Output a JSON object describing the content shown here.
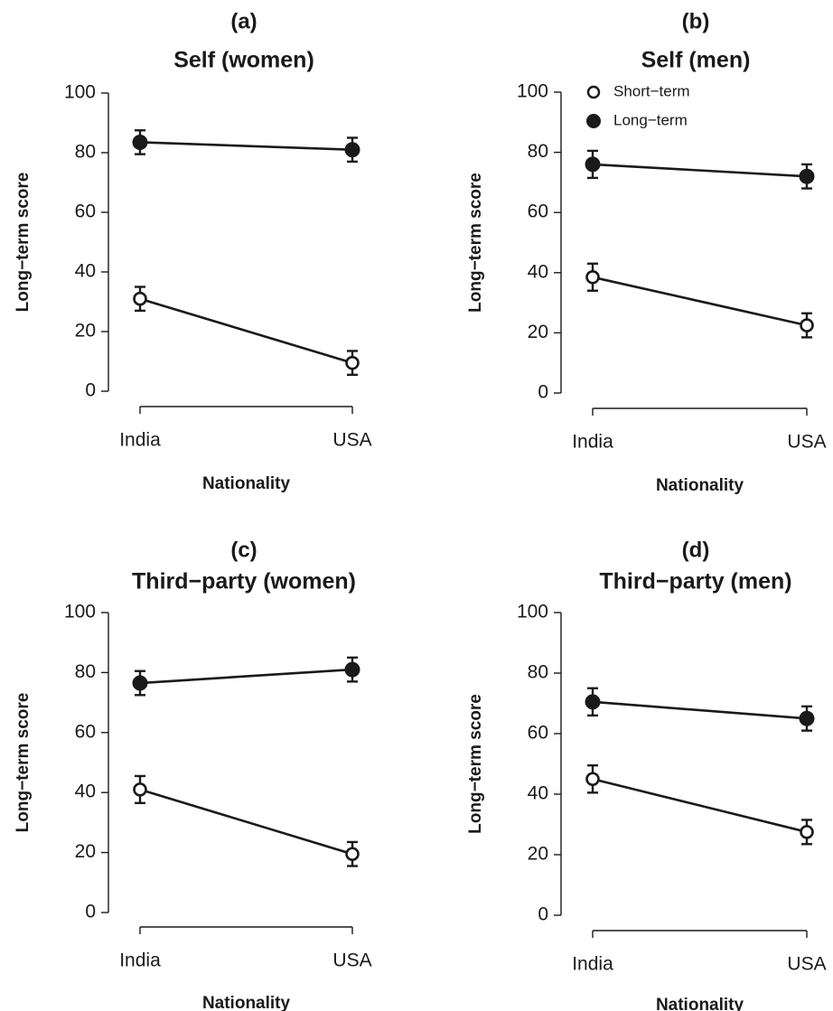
{
  "chart_data": [
    {
      "type": "line",
      "label": "(a)",
      "title": "Self (women)",
      "xlabel": "Nationality",
      "ylabel": "Long−term score",
      "categories": [
        "India",
        "USA"
      ],
      "ylim": [
        0,
        100
      ],
      "yticks": [
        0,
        20,
        40,
        60,
        80,
        100
      ],
      "grid": false,
      "legend": null,
      "series": [
        {
          "key": "short",
          "marker": "open-circle",
          "values": [
            31,
            9.5
          ],
          "errors": [
            4,
            4
          ]
        },
        {
          "key": "long",
          "marker": "filled-circle",
          "values": [
            83.5,
            81
          ],
          "errors": [
            4,
            4
          ]
        }
      ]
    },
    {
      "type": "line",
      "label": "(b)",
      "title": "Self (men)",
      "xlabel": "Nationality",
      "ylabel": "Long−term score",
      "categories": [
        "India",
        "USA"
      ],
      "ylim": [
        0,
        100
      ],
      "yticks": [
        0,
        20,
        40,
        60,
        80,
        100
      ],
      "grid": false,
      "legend": "top-left",
      "series": [
        {
          "key": "short",
          "name": "Short−term",
          "marker": "open-circle",
          "values": [
            38.5,
            22.5
          ],
          "errors": [
            4.5,
            4
          ]
        },
        {
          "key": "long",
          "name": "Long−term",
          "marker": "filled-circle",
          "values": [
            76,
            72
          ],
          "errors": [
            4.5,
            4
          ]
        }
      ]
    },
    {
      "type": "line",
      "label": "(c)",
      "title": "Third−party (women)",
      "xlabel": "Nationality",
      "ylabel": "Long−term score",
      "categories": [
        "India",
        "USA"
      ],
      "ylim": [
        0,
        100
      ],
      "yticks": [
        0,
        20,
        40,
        60,
        80,
        100
      ],
      "grid": false,
      "legend": null,
      "series": [
        {
          "key": "short",
          "marker": "open-circle",
          "values": [
            41,
            19.5
          ],
          "errors": [
            4.5,
            4
          ]
        },
        {
          "key": "long",
          "marker": "filled-circle",
          "values": [
            76.5,
            81
          ],
          "errors": [
            4,
            4
          ]
        }
      ]
    },
    {
      "type": "line",
      "label": "(d)",
      "title": "Third−party (men)",
      "xlabel": "Nationality",
      "ylabel": "Long−term score",
      "categories": [
        "India",
        "USA"
      ],
      "ylim": [
        0,
        100
      ],
      "yticks": [
        0,
        20,
        40,
        60,
        80,
        100
      ],
      "grid": false,
      "legend": null,
      "series": [
        {
          "key": "short",
          "marker": "open-circle",
          "values": [
            45,
            27.5
          ],
          "errors": [
            4.5,
            4
          ]
        },
        {
          "key": "long",
          "marker": "filled-circle",
          "values": [
            70.5,
            65
          ],
          "errors": [
            4.5,
            4
          ]
        }
      ]
    }
  ],
  "colors": {
    "ink": "#1a1a1a",
    "background": "#ffffff"
  }
}
